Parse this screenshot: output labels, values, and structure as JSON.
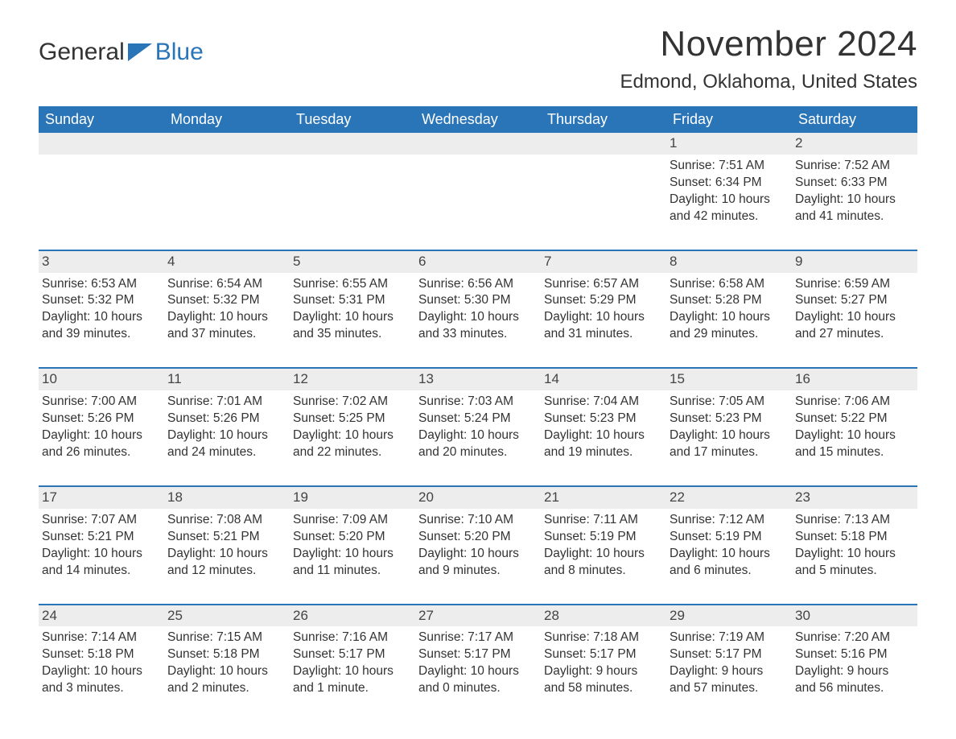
{
  "logo": {
    "general": "General",
    "blue": "Blue",
    "brand_color": "#2a74b8"
  },
  "title": "November 2024",
  "location": "Edmond, Oklahoma, United States",
  "colors": {
    "header_bg": "#2a74b8",
    "header_text": "#ffffff",
    "daynum_bg": "#ededed",
    "week_border": "#2a74b8",
    "text": "#333333",
    "background": "#ffffff"
  },
  "typography": {
    "title_fontsize": 44,
    "location_fontsize": 24,
    "dow_fontsize": 18,
    "body_fontsize": 15.5,
    "font_family": "Arial"
  },
  "days_of_week": [
    "Sunday",
    "Monday",
    "Tuesday",
    "Wednesday",
    "Thursday",
    "Friday",
    "Saturday"
  ],
  "weeks": [
    [
      {
        "empty": true
      },
      {
        "empty": true
      },
      {
        "empty": true
      },
      {
        "empty": true
      },
      {
        "empty": true
      },
      {
        "day": "1",
        "sunrise": "Sunrise: 7:51 AM",
        "sunset": "Sunset: 6:34 PM",
        "daylight": "Daylight: 10 hours and 42 minutes."
      },
      {
        "day": "2",
        "sunrise": "Sunrise: 7:52 AM",
        "sunset": "Sunset: 6:33 PM",
        "daylight": "Daylight: 10 hours and 41 minutes."
      }
    ],
    [
      {
        "day": "3",
        "sunrise": "Sunrise: 6:53 AM",
        "sunset": "Sunset: 5:32 PM",
        "daylight": "Daylight: 10 hours and 39 minutes."
      },
      {
        "day": "4",
        "sunrise": "Sunrise: 6:54 AM",
        "sunset": "Sunset: 5:32 PM",
        "daylight": "Daylight: 10 hours and 37 minutes."
      },
      {
        "day": "5",
        "sunrise": "Sunrise: 6:55 AM",
        "sunset": "Sunset: 5:31 PM",
        "daylight": "Daylight: 10 hours and 35 minutes."
      },
      {
        "day": "6",
        "sunrise": "Sunrise: 6:56 AM",
        "sunset": "Sunset: 5:30 PM",
        "daylight": "Daylight: 10 hours and 33 minutes."
      },
      {
        "day": "7",
        "sunrise": "Sunrise: 6:57 AM",
        "sunset": "Sunset: 5:29 PM",
        "daylight": "Daylight: 10 hours and 31 minutes."
      },
      {
        "day": "8",
        "sunrise": "Sunrise: 6:58 AM",
        "sunset": "Sunset: 5:28 PM",
        "daylight": "Daylight: 10 hours and 29 minutes."
      },
      {
        "day": "9",
        "sunrise": "Sunrise: 6:59 AM",
        "sunset": "Sunset: 5:27 PM",
        "daylight": "Daylight: 10 hours and 27 minutes."
      }
    ],
    [
      {
        "day": "10",
        "sunrise": "Sunrise: 7:00 AM",
        "sunset": "Sunset: 5:26 PM",
        "daylight": "Daylight: 10 hours and 26 minutes."
      },
      {
        "day": "11",
        "sunrise": "Sunrise: 7:01 AM",
        "sunset": "Sunset: 5:26 PM",
        "daylight": "Daylight: 10 hours and 24 minutes."
      },
      {
        "day": "12",
        "sunrise": "Sunrise: 7:02 AM",
        "sunset": "Sunset: 5:25 PM",
        "daylight": "Daylight: 10 hours and 22 minutes."
      },
      {
        "day": "13",
        "sunrise": "Sunrise: 7:03 AM",
        "sunset": "Sunset: 5:24 PM",
        "daylight": "Daylight: 10 hours and 20 minutes."
      },
      {
        "day": "14",
        "sunrise": "Sunrise: 7:04 AM",
        "sunset": "Sunset: 5:23 PM",
        "daylight": "Daylight: 10 hours and 19 minutes."
      },
      {
        "day": "15",
        "sunrise": "Sunrise: 7:05 AM",
        "sunset": "Sunset: 5:23 PM",
        "daylight": "Daylight: 10 hours and 17 minutes."
      },
      {
        "day": "16",
        "sunrise": "Sunrise: 7:06 AM",
        "sunset": "Sunset: 5:22 PM",
        "daylight": "Daylight: 10 hours and 15 minutes."
      }
    ],
    [
      {
        "day": "17",
        "sunrise": "Sunrise: 7:07 AM",
        "sunset": "Sunset: 5:21 PM",
        "daylight": "Daylight: 10 hours and 14 minutes."
      },
      {
        "day": "18",
        "sunrise": "Sunrise: 7:08 AM",
        "sunset": "Sunset: 5:21 PM",
        "daylight": "Daylight: 10 hours and 12 minutes."
      },
      {
        "day": "19",
        "sunrise": "Sunrise: 7:09 AM",
        "sunset": "Sunset: 5:20 PM",
        "daylight": "Daylight: 10 hours and 11 minutes."
      },
      {
        "day": "20",
        "sunrise": "Sunrise: 7:10 AM",
        "sunset": "Sunset: 5:20 PM",
        "daylight": "Daylight: 10 hours and 9 minutes."
      },
      {
        "day": "21",
        "sunrise": "Sunrise: 7:11 AM",
        "sunset": "Sunset: 5:19 PM",
        "daylight": "Daylight: 10 hours and 8 minutes."
      },
      {
        "day": "22",
        "sunrise": "Sunrise: 7:12 AM",
        "sunset": "Sunset: 5:19 PM",
        "daylight": "Daylight: 10 hours and 6 minutes."
      },
      {
        "day": "23",
        "sunrise": "Sunrise: 7:13 AM",
        "sunset": "Sunset: 5:18 PM",
        "daylight": "Daylight: 10 hours and 5 minutes."
      }
    ],
    [
      {
        "day": "24",
        "sunrise": "Sunrise: 7:14 AM",
        "sunset": "Sunset: 5:18 PM",
        "daylight": "Daylight: 10 hours and 3 minutes."
      },
      {
        "day": "25",
        "sunrise": "Sunrise: 7:15 AM",
        "sunset": "Sunset: 5:18 PM",
        "daylight": "Daylight: 10 hours and 2 minutes."
      },
      {
        "day": "26",
        "sunrise": "Sunrise: 7:16 AM",
        "sunset": "Sunset: 5:17 PM",
        "daylight": "Daylight: 10 hours and 1 minute."
      },
      {
        "day": "27",
        "sunrise": "Sunrise: 7:17 AM",
        "sunset": "Sunset: 5:17 PM",
        "daylight": "Daylight: 10 hours and 0 minutes."
      },
      {
        "day": "28",
        "sunrise": "Sunrise: 7:18 AM",
        "sunset": "Sunset: 5:17 PM",
        "daylight": "Daylight: 9 hours and 58 minutes."
      },
      {
        "day": "29",
        "sunrise": "Sunrise: 7:19 AM",
        "sunset": "Sunset: 5:17 PM",
        "daylight": "Daylight: 9 hours and 57 minutes."
      },
      {
        "day": "30",
        "sunrise": "Sunrise: 7:20 AM",
        "sunset": "Sunset: 5:16 PM",
        "daylight": "Daylight: 9 hours and 56 minutes."
      }
    ]
  ]
}
